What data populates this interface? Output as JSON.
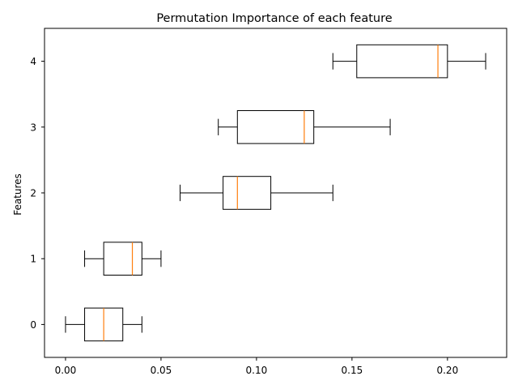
{
  "chart_data": {
    "type": "box",
    "orientation": "horizontal",
    "title": "Permutation Importance of each feature",
    "xlabel": "",
    "ylabel": "Features",
    "xlim": [
      -0.011,
      0.231
    ],
    "ylim": [
      -0.5,
      4.5
    ],
    "xticks": [
      "0.00",
      "0.05",
      "0.10",
      "0.15",
      "0.20"
    ],
    "xtick_values": [
      0.0,
      0.05,
      0.1,
      0.15,
      0.2
    ],
    "categories": [
      "0",
      "1",
      "2",
      "3",
      "4"
    ],
    "boxes": [
      {
        "label": "0",
        "whisker_low": 0.0,
        "q1": 0.01,
        "median": 0.02,
        "q3": 0.03,
        "whisker_high": 0.04
      },
      {
        "label": "1",
        "whisker_low": 0.01,
        "q1": 0.02,
        "median": 0.035,
        "q3": 0.04,
        "whisker_high": 0.05
      },
      {
        "label": "2",
        "whisker_low": 0.06,
        "q1": 0.0825,
        "median": 0.09,
        "q3": 0.1075,
        "whisker_high": 0.14
      },
      {
        "label": "3",
        "whisker_low": 0.08,
        "q1": 0.09,
        "median": 0.125,
        "q3": 0.13,
        "whisker_high": 0.17
      },
      {
        "label": "4",
        "whisker_low": 0.14,
        "q1": 0.1525,
        "median": 0.195,
        "q3": 0.2,
        "whisker_high": 0.22
      }
    ],
    "colors": {
      "box": "#000000",
      "median": "#ff7f0e"
    },
    "grid": false
  }
}
